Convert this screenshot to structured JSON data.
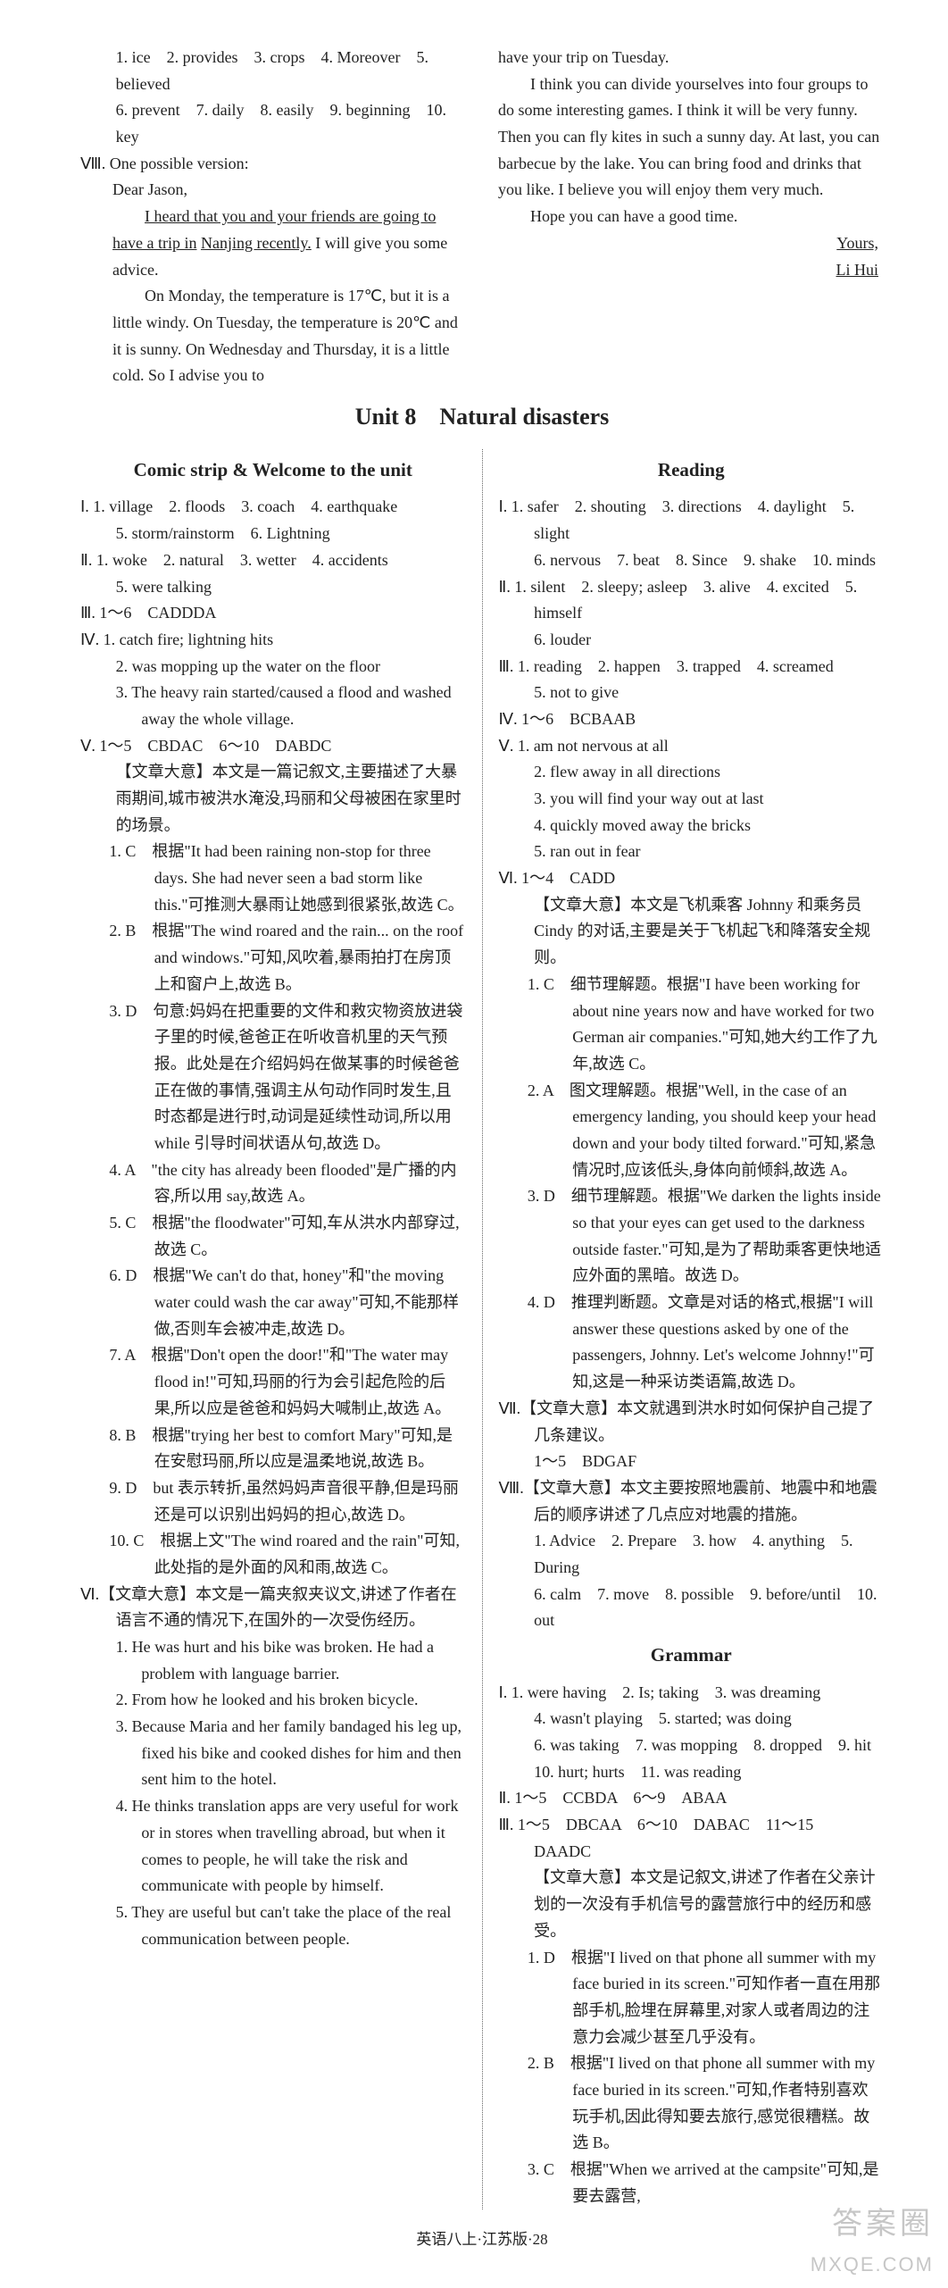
{
  "top": {
    "left": {
      "w1": "1. ice　2. provides　3. crops　4. Moreover　5. believed",
      "w2": "6. prevent　7. daily　8. easily　9. beginning　10. key",
      "opv_label": "Ⅷ. One possible version:",
      "dear": "Dear Jason,",
      "p1a": "I heard that you and your friends are going to have a trip in",
      "p1b": "Nanjing recently.",
      "p1c": " I will give you some advice.",
      "p2": "On Monday, the temperature is 17℃, but it is a little windy. On Tuesday, the temperature is 20℃ and it is sunny. On Wednesday and Thursday, it is a little cold. So I advise you to"
    },
    "right": {
      "r1": "have your trip on Tuesday.",
      "r2": "I think you can divide yourselves into four groups to do some interesting games. I think it will be very funny. Then you can fly kites in such a sunny day. At last, you can barbecue by the lake. You can bring food and drinks that you like. I believe you will enjoy them very much.",
      "r3": "Hope you can have a good time.",
      "sig1": "Yours,",
      "sig2": "Li Hui"
    }
  },
  "unit_title": "Unit 8　Natural disasters",
  "comic": {
    "heading": "Comic strip & Welcome to the unit",
    "I1": "Ⅰ. 1. village　2. floods　3. coach　4. earthquake",
    "I2": "5. storm/rainstorm　6. Lightning",
    "II1": "Ⅱ. 1. woke　2. natural　3. wetter　4. accidents",
    "II2": "5. were talking",
    "III": "Ⅲ. 1～6　CADDDA",
    "IV1": "Ⅳ. 1. catch fire; lightning hits",
    "IV2": "2. was mopping up the water on the floor",
    "IV3": "3. The heavy rain started/caused a flood and washed away the whole village.",
    "V_head": "Ⅴ. 1～5　CBDAC　6～10　DABDC",
    "V_meaning": "【文章大意】本文是一篇记叙文,主要描述了大暴雨期间,城市被洪水淹没,玛丽和父母被困在家里时的场景。",
    "V1": "1. C　根据\"It had been raining non-stop for three days. She had never seen a bad storm like this.\"可推测大暴雨让她感到很紧张,故选 C。",
    "V2": "2. B　根据\"The wind roared and the rain... on the roof and windows.\"可知,风吹着,暴雨拍打在房顶上和窗户上,故选 B。",
    "V3": "3. D　句意:妈妈在把重要的文件和救灾物资放进袋子里的时候,爸爸正在听收音机里的天气预报。此处是在介绍妈妈在做某事的时候爸爸正在做的事情,强调主从句动作同时发生,且时态都是进行时,动词是延续性动词,所以用 while 引导时间状语从句,故选 D。",
    "V4": "4. A　\"the city has already been flooded\"是广播的内容,所以用 say,故选 A。",
    "V5": "5. C　根据\"the floodwater\"可知,车从洪水内部穿过,故选 C。",
    "V6": "6. D　根据\"We can't do that, honey\"和\"the moving water could wash the car away\"可知,不能那样做,否则车会被冲走,故选 D。",
    "V7": "7. A　根据\"Don't open the door!\"和\"The water may flood in!\"可知,玛丽的行为会引起危险的后果,所以应是爸爸和妈妈大喊制止,故选 A。",
    "V8": "8. B　根据\"trying her best to comfort Mary\"可知,是在安慰玛丽,所以应是温柔地说,故选 B。",
    "V9": "9. D　but 表示转折,虽然妈妈声音很平静,但是玛丽还是可以识别出妈妈的担心,故选 D。",
    "V10": "10. C　根据上文\"The wind roared and the rain\"可知,此处指的是外面的风和雨,故选 C。",
    "VI_meaning": "Ⅵ.【文章大意】本文是一篇夹叙夹议文,讲述了作者在语言不通的情况下,在国外的一次受伤经历。",
    "VI1": "1. He was hurt and his bike was broken. He had a problem with language barrier.",
    "VI2": "2. From how he looked and his broken bicycle.",
    "VI3": "3. Because Maria and her family bandaged his leg up, fixed his bike and cooked dishes for him and then sent him to the hotel.",
    "VI4": "4. He thinks translation apps are very useful for work or in stores when travelling abroad, but when it comes to people, he will take the risk and communicate with people by himself.",
    "VI5": "5. They are useful but can't take the place of the real communication between people."
  },
  "reading": {
    "heading": "Reading",
    "I1": "Ⅰ. 1. safer　2. shouting　3. directions　4. daylight　5. slight",
    "I2": "6. nervous　7. beat　8. Since　9. shake　10. minds",
    "II1": "Ⅱ. 1. silent　2. sleepy; asleep　3. alive　4. excited　5. himself",
    "II2": "6. louder",
    "III1": "Ⅲ. 1. reading　2. happen　3. trapped　4. screamed",
    "III2": "5. not to give",
    "IV": "Ⅳ. 1～6　BCBAAB",
    "V1": "Ⅴ. 1. am not nervous at all",
    "V2": "2. flew away in all directions",
    "V3": "3. you will find your way out at last",
    "V4": "4. quickly moved away the bricks",
    "V5": "5. ran out in fear",
    "VI_head": "Ⅵ. 1～4　CADD",
    "VI_meaning": "【文章大意】本文是飞机乘客 Johnny 和乘务员 Cindy 的对话,主要是关于飞机起飞和降落安全规则。",
    "VI1": "1. C　细节理解题。根据\"I have been working for about nine years now and have worked for two German air companies.\"可知,她大约工作了九年,故选 C。",
    "VI2": "2. A　图文理解题。根据\"Well, in the case of an emergency landing, you should keep your head down and your body tilted forward.\"可知,紧急情况时,应该低头,身体向前倾斜,故选 A。",
    "VI3": "3. D　细节理解题。根据\"We darken the lights inside so that your eyes can get used to the darkness outside faster.\"可知,是为了帮助乘客更快地适应外面的黑暗。故选 D。",
    "VI4": "4. D　推理判断题。文章是对话的格式,根据\"I will answer these questions asked by one of the passengers, Johnny. Let's welcome Johnny!\"可知,这是一种采访类语篇,故选 D。",
    "VII_meaning": "Ⅶ.【文章大意】本文就遇到洪水时如何保护自己提了几条建议。",
    "VII_ans": "1～5　BDGAF",
    "VIII_meaning": "Ⅷ.【文章大意】本文主要按照地震前、地震中和地震后的顺序讲述了几点应对地震的措施。",
    "VIII1": "1. Advice　2. Prepare　3. how　4. anything　5. During",
    "VIII2": "6. calm　7. move　8. possible　9. before/until　10. out"
  },
  "grammar": {
    "heading": "Grammar",
    "I1": "Ⅰ. 1. were having　2. Is; taking　3. was dreaming",
    "I2": "4. wasn't playing　5. started; was doing",
    "I3": "6. was taking　7. was mopping　8. dropped　9. hit",
    "I4": "10. hurt; hurts　11. was reading",
    "II": "Ⅱ. 1～5　CCBDA　6～9　ABAA",
    "III_head": "Ⅲ. 1～5　DBCAA　6～10　DABAC　11～15　DAADC",
    "III_meaning": "【文章大意】本文是记叙文,讲述了作者在父亲计划的一次没有手机信号的露营旅行中的经历和感受。",
    "III1": "1. D　根据\"I lived on that phone all summer with my face buried in its screen.\"可知作者一直在用那部手机,脸埋在屏幕里,对家人或者周边的注意力会减少甚至几乎没有。",
    "III2": "2. B　根据\"I lived on that phone all summer with my face buried in its screen.\"可知,作者特别喜欢玩手机,因此得知要去旅行,感觉很糟糕。故选 B。",
    "III3": "3. C　根据\"When we arrived at the campsite\"可知,是要去露营,"
  },
  "footer": "英语八上·江苏版·28",
  "watermark": {
    "line1": "答案圈",
    "line2": "MXQE.COM"
  }
}
